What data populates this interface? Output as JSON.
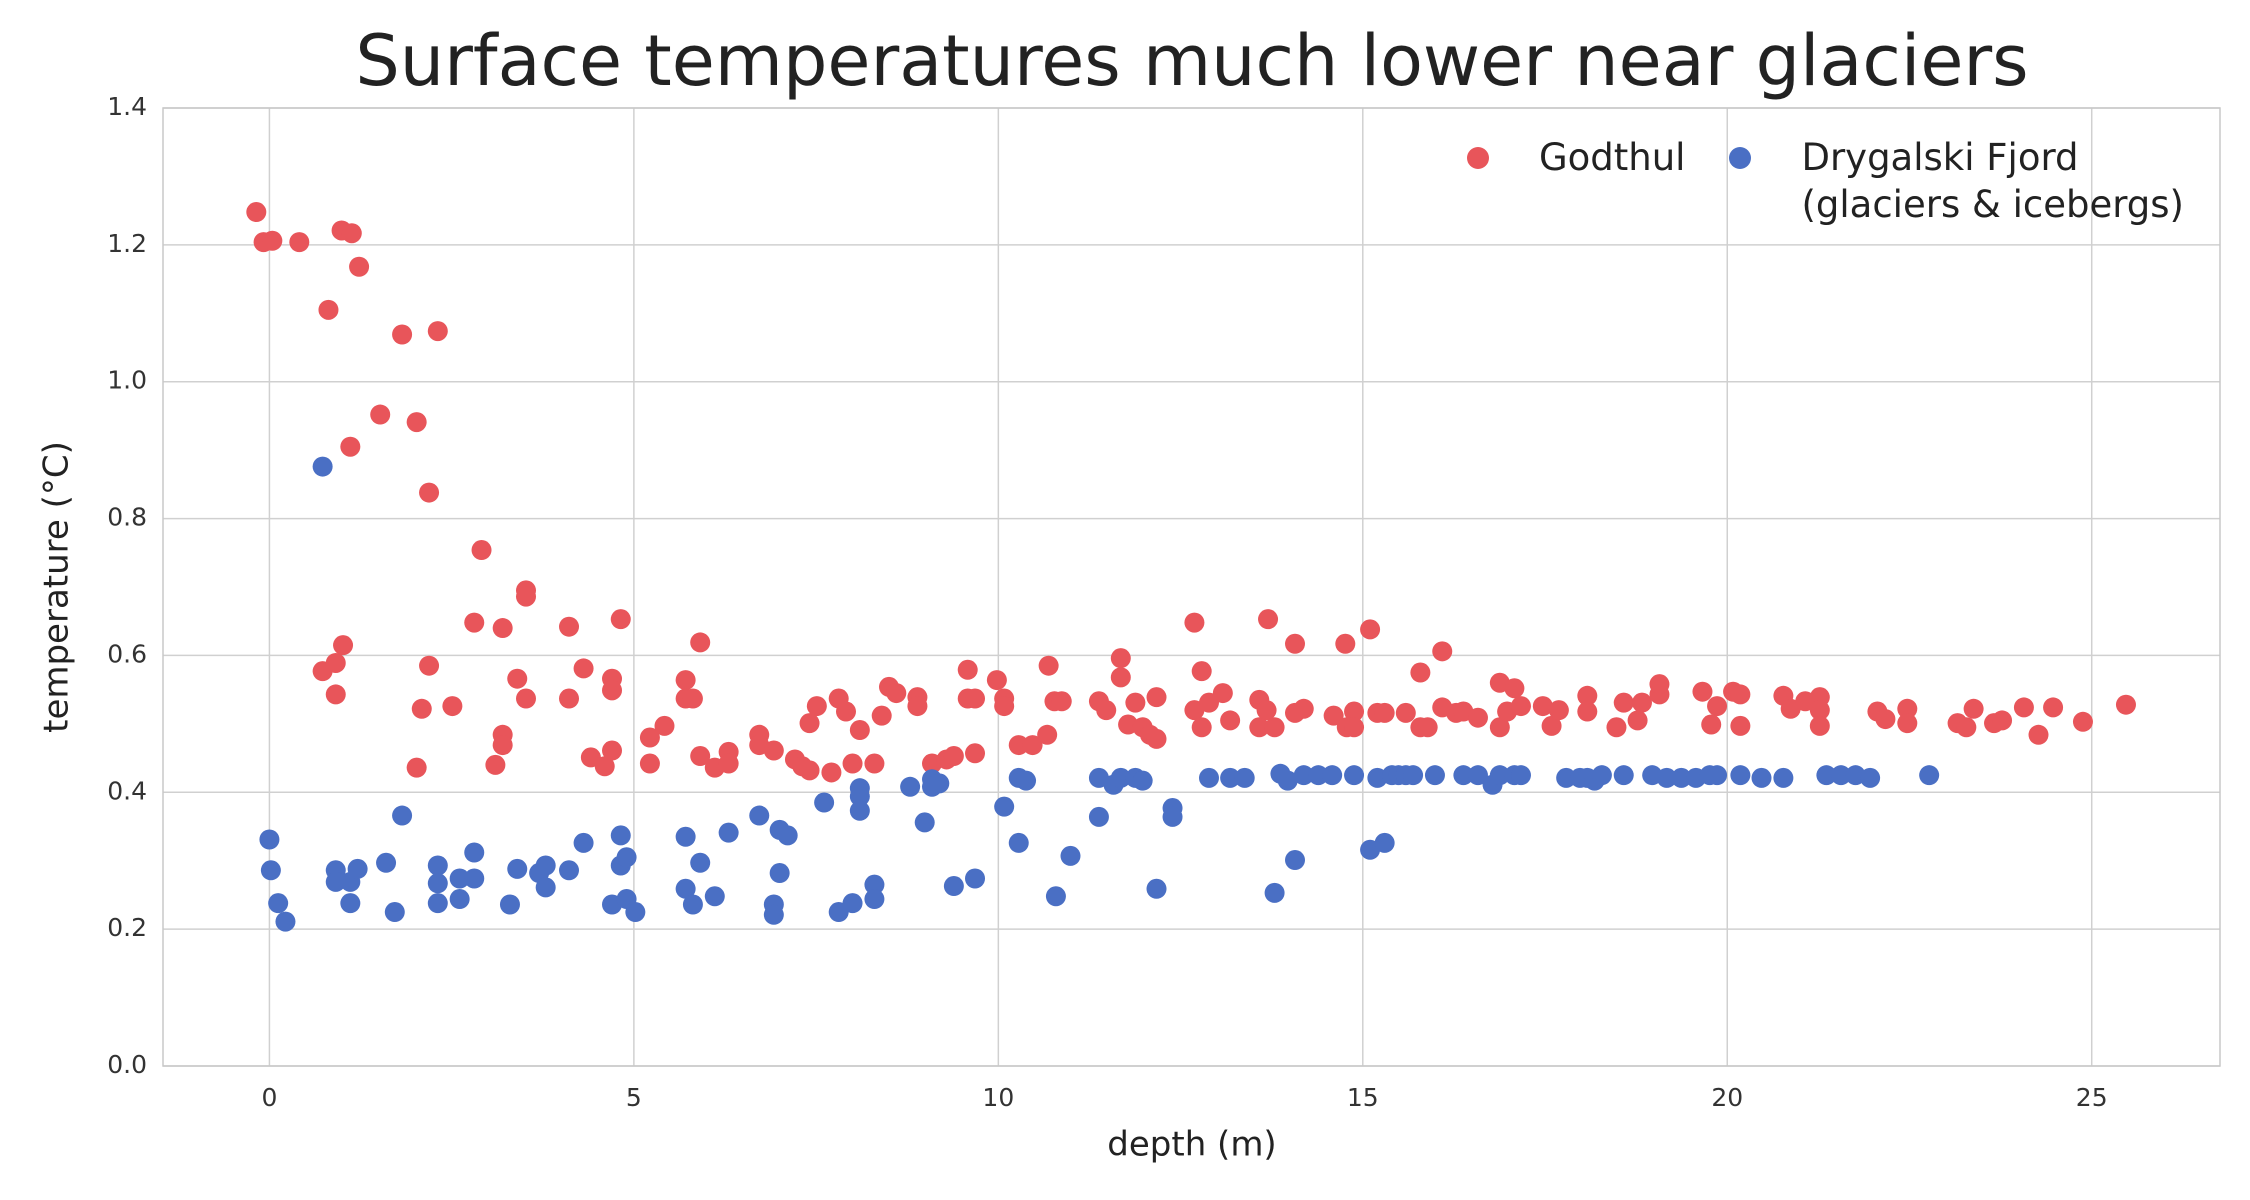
{
  "chart_data": {
    "type": "scatter",
    "title": "Surface temperatures much lower near glaciers",
    "x_label": "depth (m)",
    "y_label": "temperature (°C)",
    "xlim": [
      -1.46,
      26.76
    ],
    "ylim": [
      0,
      1.4
    ],
    "xticks": [
      0,
      5,
      10,
      15,
      20,
      25
    ],
    "yticks": [
      {
        "value": 0,
        "label": "0.0"
      },
      0.2,
      0.4,
      0.6,
      0.8,
      {
        "value": 1,
        "label": "1.0"
      },
      1.2,
      1.4
    ],
    "grid": true,
    "legend": "upper right",
    "series": [
      {
        "name": "Godthul",
        "color": "#e8555a",
        "x": [
          -0.18,
          -0.08,
          0.04,
          0.41,
          0.81,
          0.99,
          1.13,
          1.23,
          1.82,
          2.31,
          1.52,
          2.02,
          1.11,
          2.19,
          2.91,
          0.73,
          0.91,
          1.01,
          0.91,
          2.19,
          2.09,
          2.02,
          2.51,
          2.81,
          3.2,
          3.52,
          3.52,
          3.4,
          3.52,
          3.2,
          3.2,
          3.1,
          4.11,
          4.11,
          4.31,
          4.41,
          4.6,
          4.7,
          4.7,
          4.7,
          4.82,
          5.22,
          5.22,
          5.42,
          5.71,
          5.71,
          5.81,
          5.91,
          5.91,
          6.11,
          6.3,
          6.3,
          6.72,
          6.72,
          6.92,
          7.21,
          7.31,
          7.41,
          7.41,
          7.51,
          7.71,
          7.81,
          7.91,
          8.0,
          8.1,
          8.3,
          8.4,
          8.5,
          8.6,
          8.89,
          8.89,
          9.09,
          9.29,
          9.39,
          9.58,
          9.58,
          9.68,
          9.68,
          9.98,
          10.08,
          10.08,
          10.28,
          10.47,
          10.67,
          10.69,
          10.77,
          10.87,
          11.38,
          11.48,
          11.68,
          11.68,
          11.78,
          11.88,
          11.98,
          12.08,
          12.17,
          12.17,
          12.69,
          12.79,
          12.69,
          12.79,
          12.89,
          13.08,
          13.18,
          13.58,
          13.58,
          13.68,
          13.7,
          13.79,
          14.07,
          14.07,
          14.19,
          14.6,
          14.76,
          14.78,
          14.88,
          14.88,
          15.1,
          15.2,
          15.3,
          15.59,
          15.79,
          15.79,
          15.89,
          16.09,
          16.09,
          16.28,
          16.38,
          16.58,
          16.88,
          16.88,
          16.98,
          17.08,
          17.17,
          17.47,
          17.59,
          17.69,
          18.08,
          18.08,
          18.48,
          18.58,
          18.77,
          18.83,
          19.07,
          19.07,
          19.66,
          19.78,
          19.86,
          20.08,
          20.18,
          20.18,
          20.77,
          20.87,
          21.07,
          21.27,
          21.27,
          21.27,
          22.06,
          22.17,
          22.47,
          22.47,
          23.16,
          23.28,
          23.38,
          23.66,
          23.77,
          24.07,
          24.27,
          24.47,
          24.88,
          25.47
        ],
        "values": [
          1.248,
          1.204,
          1.206,
          1.204,
          1.105,
          1.221,
          1.217,
          1.168,
          1.069,
          1.074,
          0.952,
          0.941,
          0.905,
          0.838,
          0.754,
          0.577,
          0.589,
          0.615,
          0.543,
          0.585,
          0.522,
          0.436,
          0.526,
          0.648,
          0.64,
          0.695,
          0.686,
          0.566,
          0.537,
          0.484,
          0.469,
          0.44,
          0.642,
          0.537,
          0.581,
          0.451,
          0.438,
          0.566,
          0.549,
          0.461,
          0.653,
          0.442,
          0.48,
          0.497,
          0.564,
          0.537,
          0.537,
          0.619,
          0.453,
          0.436,
          0.459,
          0.442,
          0.484,
          0.469,
          0.461,
          0.448,
          0.438,
          0.432,
          0.501,
          0.526,
          0.429,
          0.537,
          0.518,
          0.442,
          0.491,
          0.442,
          0.512,
          0.554,
          0.545,
          0.539,
          0.526,
          0.442,
          0.448,
          0.453,
          0.579,
          0.537,
          0.537,
          0.457,
          0.564,
          0.537,
          0.526,
          0.469,
          0.469,
          0.484,
          0.585,
          0.533,
          0.533,
          0.533,
          0.52,
          0.596,
          0.568,
          0.499,
          0.531,
          0.495,
          0.484,
          0.478,
          0.539,
          0.648,
          0.577,
          0.52,
          0.495,
          0.531,
          0.545,
          0.505,
          0.495,
          0.535,
          0.52,
          0.653,
          0.495,
          0.617,
          0.516,
          0.522,
          0.512,
          0.617,
          0.495,
          0.518,
          0.495,
          0.638,
          0.516,
          0.516,
          0.516,
          0.575,
          0.495,
          0.495,
          0.606,
          0.524,
          0.516,
          0.518,
          0.509,
          0.56,
          0.495,
          0.518,
          0.552,
          0.526,
          0.526,
          0.497,
          0.52,
          0.541,
          0.518,
          0.495,
          0.531,
          0.505,
          0.531,
          0.543,
          0.558,
          0.547,
          0.499,
          0.526,
          0.547,
          0.543,
          0.497,
          0.541,
          0.522,
          0.533,
          0.539,
          0.52,
          0.497,
          0.518,
          0.507,
          0.522,
          0.501,
          0.501,
          0.495,
          0.522,
          0.501,
          0.505,
          0.524,
          0.484,
          0.524,
          0.503,
          0.528
        ]
      },
      {
        "name": "Drygalski Fjord\n(glaciers & icebergs)",
        "color": "#4a6fc4",
        "x": [
          0.73,
          0.0,
          0.02,
          0.12,
          0.22,
          0.91,
          0.91,
          1.11,
          1.11,
          1.21,
          1.6,
          1.72,
          1.82,
          2.31,
          2.31,
          2.31,
          2.61,
          2.61,
          2.81,
          2.81,
          3.3,
          3.4,
          3.7,
          3.79,
          3.79,
          4.11,
          4.31,
          4.7,
          4.82,
          4.82,
          4.9,
          4.9,
          5.02,
          5.71,
          5.71,
          5.81,
          5.91,
          6.11,
          6.3,
          6.72,
          6.92,
          6.92,
          7.0,
          7.0,
          7.11,
          7.61,
          7.81,
          8.0,
          8.1,
          8.1,
          8.1,
          8.3,
          8.3,
          8.79,
          8.99,
          9.09,
          9.09,
          9.19,
          9.39,
          9.68,
          10.08,
          10.28,
          10.38,
          10.28,
          10.79,
          10.99,
          11.38,
          11.38,
          11.58,
          11.68,
          11.88,
          11.98,
          12.17,
          12.39,
          12.39,
          12.89,
          13.18,
          13.38,
          13.79,
          13.87,
          13.97,
          14.07,
          14.19,
          14.39,
          14.58,
          14.88,
          15.1,
          15.2,
          15.3,
          15.4,
          15.49,
          15.59,
          15.69,
          15.99,
          16.38,
          16.58,
          16.78,
          16.88,
          17.08,
          17.17,
          17.79,
          17.98,
          18.08,
          18.18,
          18.28,
          18.58,
          18.97,
          19.17,
          19.37,
          19.57,
          19.76,
          19.86,
          20.18,
          20.47,
          20.77,
          21.36,
          21.56,
          21.76,
          21.96,
          22.77
        ],
        "values": [
          0.876,
          0.331,
          0.286,
          0.238,
          0.211,
          0.286,
          0.269,
          0.238,
          0.269,
          0.288,
          0.297,
          0.225,
          0.366,
          0.293,
          0.238,
          0.267,
          0.274,
          0.244,
          0.312,
          0.274,
          0.236,
          0.288,
          0.282,
          0.293,
          0.261,
          0.286,
          0.326,
          0.236,
          0.337,
          0.293,
          0.305,
          0.244,
          0.225,
          0.335,
          0.259,
          0.236,
          0.297,
          0.248,
          0.341,
          0.366,
          0.236,
          0.221,
          0.345,
          0.282,
          0.337,
          0.385,
          0.225,
          0.238,
          0.406,
          0.394,
          0.373,
          0.265,
          0.244,
          0.408,
          0.356,
          0.419,
          0.408,
          0.413,
          0.263,
          0.274,
          0.379,
          0.421,
          0.417,
          0.326,
          0.248,
          0.307,
          0.421,
          0.364,
          0.411,
          0.421,
          0.421,
          0.417,
          0.259,
          0.377,
          0.364,
          0.421,
          0.421,
          0.421,
          0.253,
          0.427,
          0.417,
          0.301,
          0.425,
          0.425,
          0.425,
          0.425,
          0.316,
          0.421,
          0.326,
          0.425,
          0.425,
          0.425,
          0.425,
          0.425,
          0.425,
          0.425,
          0.411,
          0.425,
          0.425,
          0.425,
          0.421,
          0.421,
          0.421,
          0.417,
          0.425,
          0.425,
          0.425,
          0.421,
          0.421,
          0.421,
          0.425,
          0.425,
          0.425,
          0.421,
          0.421,
          0.425,
          0.425,
          0.425,
          0.421,
          0.425
        ]
      }
    ]
  }
}
